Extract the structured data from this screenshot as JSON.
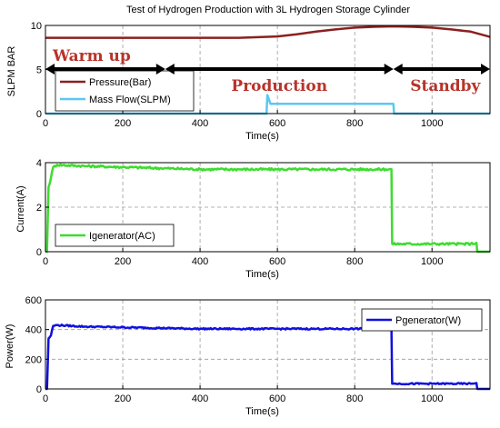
{
  "chart_data": [
    {
      "type": "line",
      "title": "Test of Hydrogen Production with 3L Hydrogen Storage Cylinder",
      "xlabel": "Time(s)",
      "ylabel": "SLPM BAR",
      "xlim": [
        0,
        1150
      ],
      "ylim": [
        0,
        10
      ],
      "xticks": [
        "0",
        "200",
        "400",
        "600",
        "800",
        "1000"
      ],
      "yticks": [
        "0",
        "5",
        "10"
      ],
      "grid": true,
      "legend_position": "lower-left",
      "series": [
        {
          "name": "Pressure(Bar)",
          "color": "#8b2020",
          "x": [
            0,
            100,
            200,
            300,
            400,
            500,
            600,
            650,
            700,
            750,
            800,
            850,
            900,
            950,
            1000,
            1050,
            1100,
            1150
          ],
          "y": [
            8.6,
            8.6,
            8.6,
            8.6,
            8.6,
            8.6,
            8.75,
            9.0,
            9.3,
            9.55,
            9.75,
            9.85,
            9.9,
            9.85,
            9.75,
            9.55,
            9.3,
            8.7
          ]
        },
        {
          "name": "Mass Flow(SLPM)",
          "color": "#5ac8f0",
          "x": [
            0,
            572,
            574,
            582,
            900,
            902,
            1150
          ],
          "y": [
            0,
            0,
            2.1,
            1.1,
            1.1,
            0,
            0
          ]
        }
      ],
      "annotations": [
        {
          "label": "Warm up",
          "x_start": 0,
          "x_end": 310
        },
        {
          "label": "Production",
          "x_start": 310,
          "x_end": 900
        },
        {
          "label": "Standby",
          "x_start": 900,
          "x_end": 1150
        }
      ]
    },
    {
      "type": "line",
      "xlabel": "Time(s)",
      "ylabel": "Current(A)",
      "xlim": [
        0,
        1150
      ],
      "ylim": [
        0,
        4
      ],
      "xticks": [
        "0",
        "200",
        "400",
        "600",
        "800",
        "1000"
      ],
      "yticks": [
        "0",
        "2",
        "4"
      ],
      "grid": true,
      "legend_position": "lower-left",
      "series": [
        {
          "name": "Igenerator(AC)",
          "color": "#3ddc2e",
          "x": [
            0,
            4,
            8,
            14,
            20,
            30,
            100,
            200,
            300,
            400,
            500,
            600,
            700,
            800,
            880,
            895,
            897,
            1000,
            1100,
            1115,
            1117,
            1150
          ],
          "y": [
            0,
            0,
            2.9,
            3.3,
            3.8,
            3.9,
            3.85,
            3.8,
            3.75,
            3.7,
            3.7,
            3.7,
            3.7,
            3.7,
            3.7,
            3.7,
            0.35,
            0.35,
            0.35,
            0.4,
            0.0,
            0.0
          ]
        }
      ]
    },
    {
      "type": "line",
      "xlabel": "Time(s)",
      "ylabel": "Power(W)",
      "xlim": [
        0,
        1150
      ],
      "ylim": [
        0,
        600
      ],
      "xticks": [
        "0",
        "200",
        "400",
        "600",
        "800",
        "1000"
      ],
      "yticks": [
        "0",
        "200",
        "400",
        "600"
      ],
      "grid": true,
      "legend_position": "top-right",
      "series": [
        {
          "name": "Pgenerator(W)",
          "color": "#1010e0",
          "x": [
            0,
            4,
            8,
            14,
            20,
            30,
            100,
            200,
            300,
            400,
            500,
            600,
            700,
            800,
            880,
            895,
            897,
            1000,
            1100,
            1115,
            1117,
            1150
          ],
          "y": [
            0,
            0,
            340,
            360,
            425,
            430,
            420,
            415,
            410,
            405,
            405,
            405,
            405,
            405,
            405,
            405,
            35,
            35,
            35,
            40,
            0,
            0
          ]
        }
      ]
    }
  ]
}
